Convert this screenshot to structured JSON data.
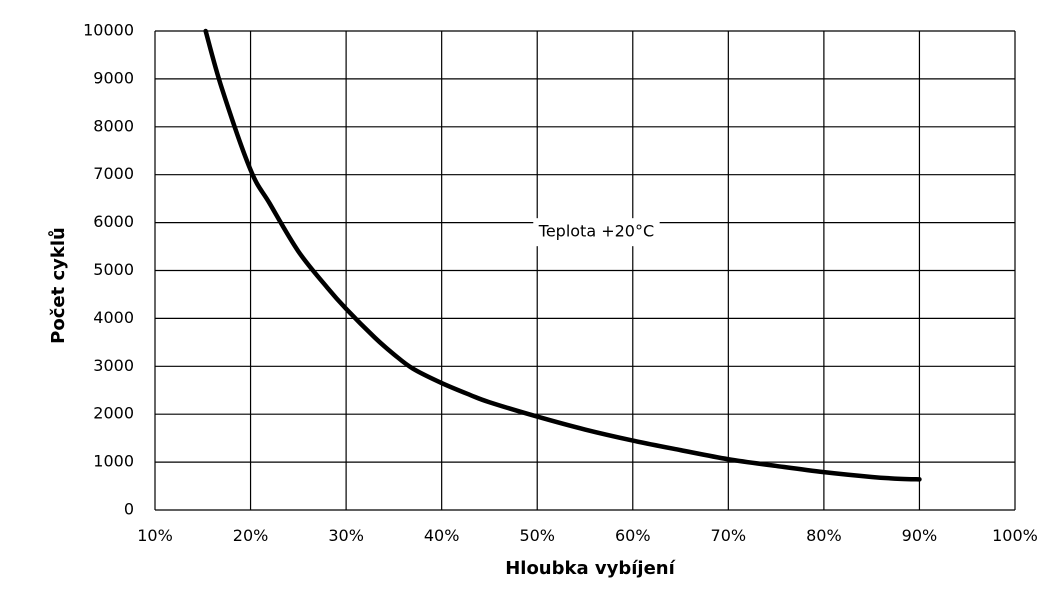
{
  "chart_data": {
    "type": "line",
    "xlabel": "Hloubka vybíjení",
    "ylabel": "Počet cyklů",
    "annotation": "Teplota +20°C",
    "xlim": [
      10,
      100
    ],
    "ylim": [
      0,
      10000
    ],
    "grid": true,
    "x_ticks": [
      "10%",
      "20%",
      "30%",
      "40%",
      "50%",
      "60%",
      "70%",
      "80%",
      "90%",
      "100%"
    ],
    "y_ticks": [
      "0",
      "1000",
      "2000",
      "3000",
      "4000",
      "5000",
      "6000",
      "7000",
      "8000",
      "9000",
      "10000"
    ],
    "series": [
      {
        "x": [
          15.3,
          17,
          20,
          22,
          25,
          28,
          30,
          33,
          35,
          37,
          40,
          43,
          45,
          50,
          55,
          60,
          65,
          70,
          75,
          80,
          85,
          88,
          90
        ],
        "values": [
          10000,
          8800,
          7100,
          6400,
          5400,
          4650,
          4200,
          3600,
          3250,
          2950,
          2650,
          2400,
          2250,
          1950,
          1680,
          1450,
          1250,
          1060,
          920,
          790,
          690,
          650,
          640
        ],
        "color": "#000000"
      }
    ]
  }
}
